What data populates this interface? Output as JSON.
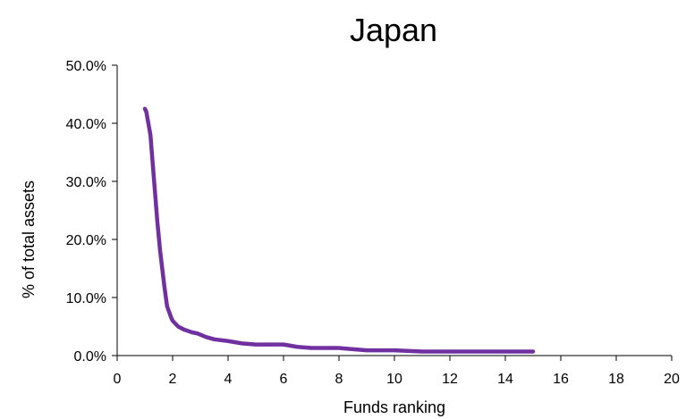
{
  "chart_data": {
    "type": "line",
    "title": "Japan",
    "xlabel": "Funds ranking",
    "ylabel": "% of total assets",
    "xlim": [
      0,
      20
    ],
    "ylim": [
      0,
      50
    ],
    "x_ticks": [
      0,
      2,
      4,
      6,
      8,
      10,
      12,
      14,
      16,
      18,
      20
    ],
    "y_ticks": [
      0,
      10,
      20,
      30,
      40,
      50
    ],
    "y_tick_labels": [
      "0.0%",
      "10.0%",
      "20.0%",
      "30.0%",
      "40.0%",
      "50.0%"
    ],
    "grid": false,
    "legend": "none",
    "series": [
      {
        "color": "#7030A0",
        "x": [
          1.0,
          1.05,
          1.2,
          1.3,
          1.45,
          1.55,
          1.7,
          1.8,
          1.95,
          2.0,
          2.2,
          2.4,
          2.7,
          2.9,
          3.2,
          3.5,
          4.0,
          4.5,
          5.0,
          6.0,
          6.5,
          7.0,
          8.0,
          9.0,
          10.0,
          11.0,
          12.0,
          13.0,
          14.0,
          15.0
        ],
        "y": [
          42.5,
          42.0,
          38.0,
          32.0,
          23.0,
          18.0,
          12.0,
          8.5,
          6.5,
          6.0,
          5.0,
          4.5,
          4.0,
          3.8,
          3.2,
          2.8,
          2.5,
          2.1,
          1.9,
          1.9,
          1.5,
          1.3,
          1.3,
          0.9,
          0.9,
          0.7,
          0.7,
          0.7,
          0.7,
          0.7
        ]
      }
    ]
  }
}
